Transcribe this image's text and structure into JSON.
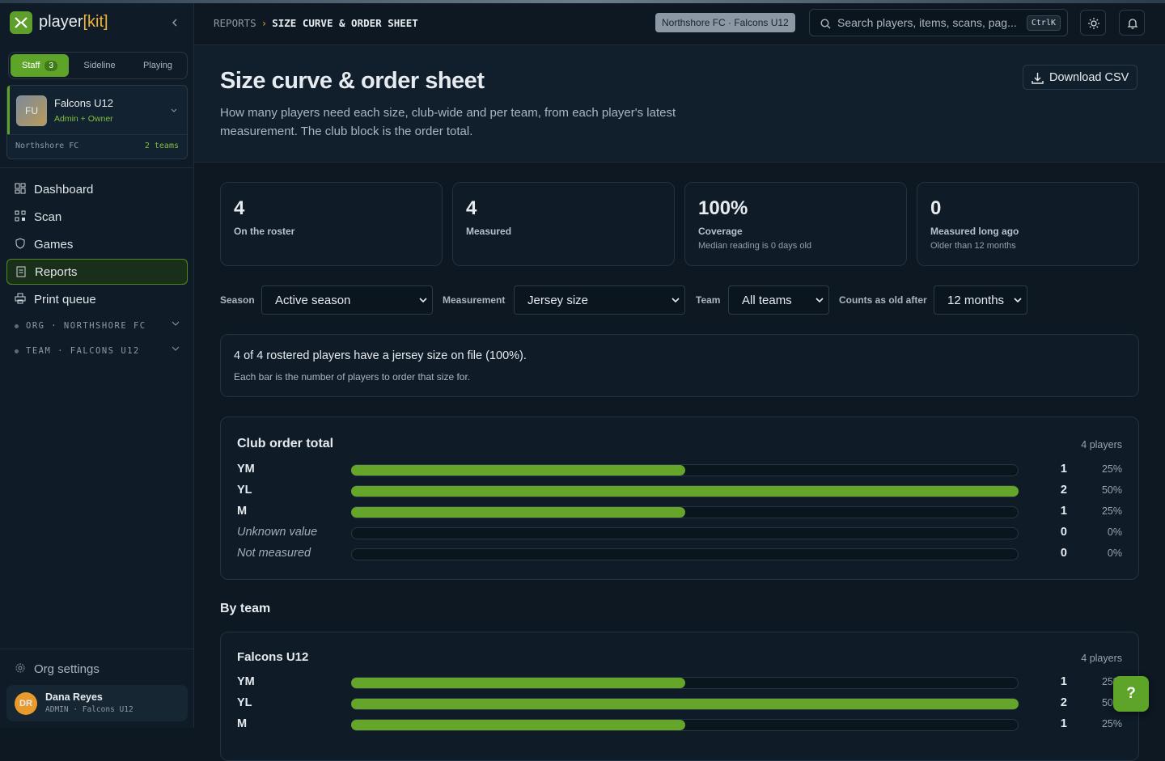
{
  "brand": {
    "name": "player",
    "accent": "[kit]"
  },
  "sidebar": {
    "modes": [
      {
        "label": "Staff",
        "badge": "3"
      },
      {
        "label": "Sideline"
      },
      {
        "label": "Playing"
      }
    ],
    "team": {
      "initials": "FU",
      "name": "Falcons U12",
      "role": "Admin + Owner",
      "org": "Northshore FC",
      "teams": "2 teams"
    },
    "nav": [
      "Dashboard",
      "Scan",
      "Games",
      "Reports",
      "Print queue"
    ],
    "groups": [
      "ORG · NORTHSHORE FC",
      "TEAM · FALCONS U12"
    ],
    "settings": "Org settings",
    "user": {
      "initials": "DR",
      "name": "Dana Reyes",
      "meta": "ADMIN · Falcons U12"
    }
  },
  "topbar": {
    "breadcrumb": [
      "REPORTS",
      "SIZE CURVE & ORDER SHEET"
    ],
    "context": "Northshore FC · Falcons U12",
    "search": "Search players, items, scans, pag...",
    "shortcut": "CtrlK"
  },
  "header": {
    "title": "Size curve & order sheet",
    "description": "How many players need each size, club-wide and per team, from each player's latest measurement. The club block is the order total.",
    "download": "Download CSV"
  },
  "stats": [
    {
      "value": 4,
      "label": "On the roster"
    },
    {
      "value": 4,
      "label": "Measured"
    },
    {
      "value": "100%",
      "label": "Coverage",
      "note": "Median reading is 0 days old"
    },
    {
      "value": 0,
      "label": "Measured long ago",
      "note": "Older than 12 months"
    }
  ],
  "filters": [
    {
      "label": "Season",
      "value": "Active season"
    },
    {
      "label": "Measurement",
      "value": "Jersey size"
    },
    {
      "label": "Team",
      "value": "All teams"
    },
    {
      "label": "Counts as old after",
      "value": "12 months"
    }
  ],
  "summary": {
    "text": "4 of 4 rostered players have a jersey size on file (100%).",
    "note": "Each bar is the number of players to order that size for."
  },
  "club": {
    "title": "Club order total",
    "players": "4 players",
    "rows": [
      {
        "size": "YM",
        "count": 1,
        "percent": "25%"
      },
      {
        "size": "YL",
        "count": 2,
        "percent": "50%"
      },
      {
        "size": "M",
        "count": 1,
        "percent": "25%"
      },
      {
        "size": "Unknown value",
        "count": 0,
        "percent": "0%"
      },
      {
        "size": "Not measured",
        "count": 0,
        "percent": "0%"
      }
    ]
  },
  "by_team": {
    "heading": "By team",
    "teams": [
      {
        "name": "Falcons U12",
        "players": "4 players",
        "rows": [
          {
            "size": "YM",
            "count": 1,
            "percent": "25%"
          },
          {
            "size": "YL",
            "count": 2,
            "percent": "50%"
          },
          {
            "size": "M",
            "count": 1,
            "percent": "25%"
          }
        ]
      }
    ]
  },
  "help": "?"
}
